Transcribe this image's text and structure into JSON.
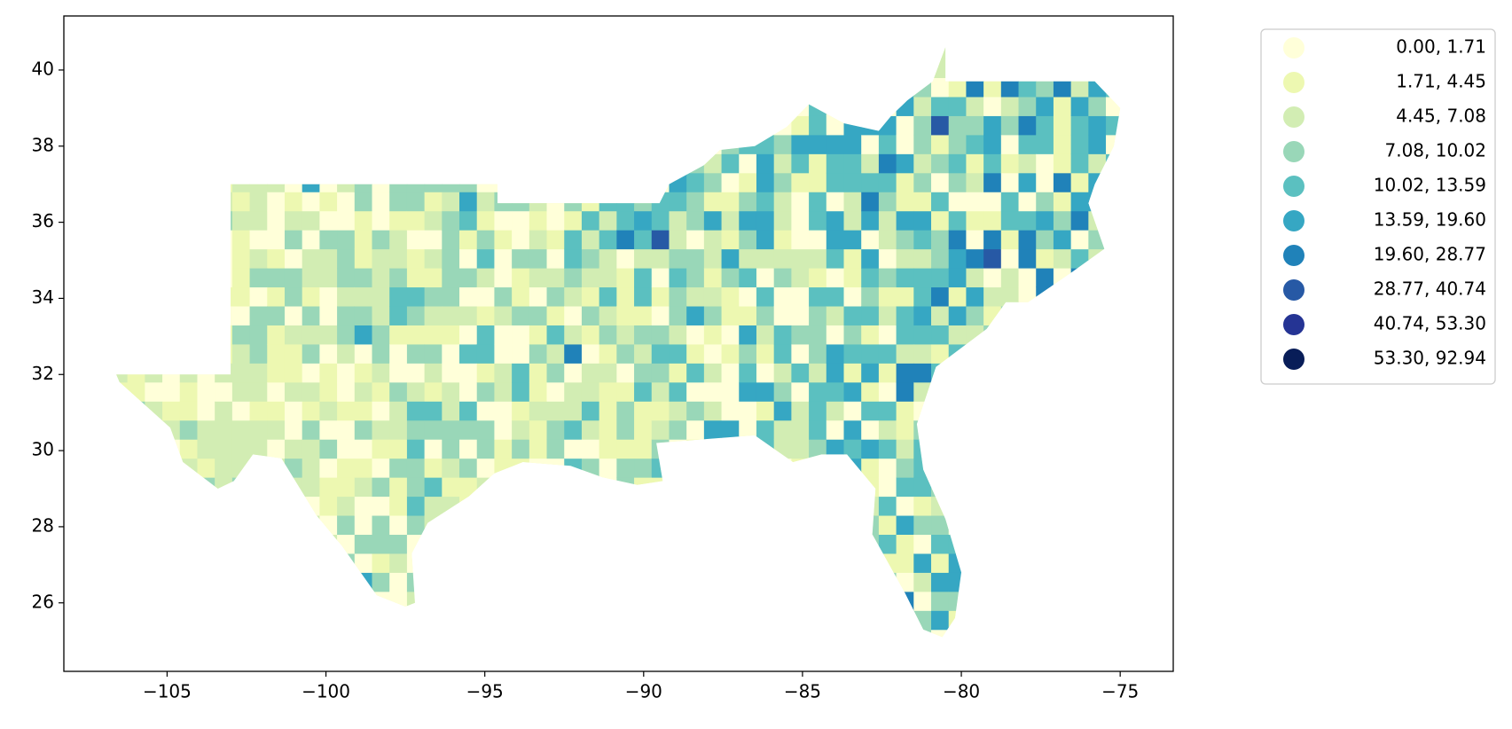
{
  "chart_data": {
    "type": "map",
    "xlim": [
      -108.25,
      -73.33
    ],
    "ylim": [
      24.2,
      41.42
    ],
    "xticks": [
      {
        "value": -105,
        "label": "−105"
      },
      {
        "value": -100,
        "label": "−100"
      },
      {
        "value": -95,
        "label": "−95"
      },
      {
        "value": -90,
        "label": "−90"
      },
      {
        "value": -85,
        "label": "−85"
      },
      {
        "value": -80,
        "label": "−80"
      },
      {
        "value": -75,
        "label": "−75"
      }
    ],
    "yticks": [
      26,
      28,
      30,
      32,
      34,
      36,
      38,
      40
    ],
    "legend_position": "upper right outside",
    "classes": [
      {
        "label": "0.00, 1.71",
        "color": "#ffffd9"
      },
      {
        "label": "1.71, 4.45",
        "color": "#edf8b1"
      },
      {
        "label": "4.45, 7.08",
        "color": "#d2edb3"
      },
      {
        "label": "7.08, 10.02",
        "color": "#99d7b8"
      },
      {
        "label": "10.02, 13.59",
        "color": "#5bc0c0"
      },
      {
        "label": "13.59, 19.60",
        "color": "#36a7c3"
      },
      {
        "label": "19.60, 28.77",
        "color": "#2082b9"
      },
      {
        "label": "28.77, 40.74",
        "color": "#2759a5"
      },
      {
        "label": "40.74, 53.30",
        "color": "#253494"
      },
      {
        "label": "53.30, 92.94",
        "color": "#081d58"
      }
    ]
  }
}
